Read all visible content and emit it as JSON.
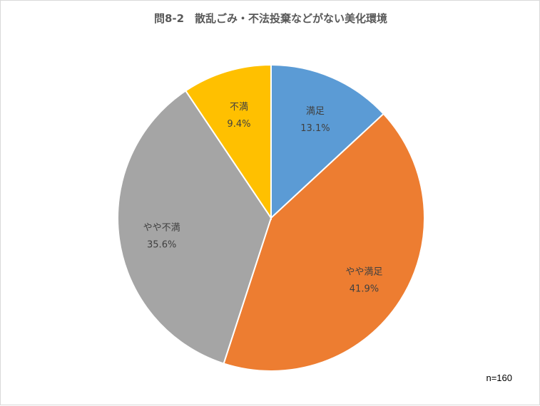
{
  "chart_data": {
    "type": "pie",
    "title": "問8-2　散乱ごみ・不法投棄などがない美化環境",
    "categories": [
      "満足",
      "やや満足",
      "やや不満",
      "不満"
    ],
    "values": [
      13.1,
      41.9,
      35.6,
      9.4
    ],
    "value_labels": [
      "13.1%",
      "41.9%",
      "35.6%",
      "9.4%"
    ],
    "colors": [
      "#5b9bd5",
      "#ed7d31",
      "#a5a5a5",
      "#ffc000"
    ],
    "start": "12 o'clock",
    "direction": "clockwise",
    "legend": "none",
    "note": "n=160"
  }
}
